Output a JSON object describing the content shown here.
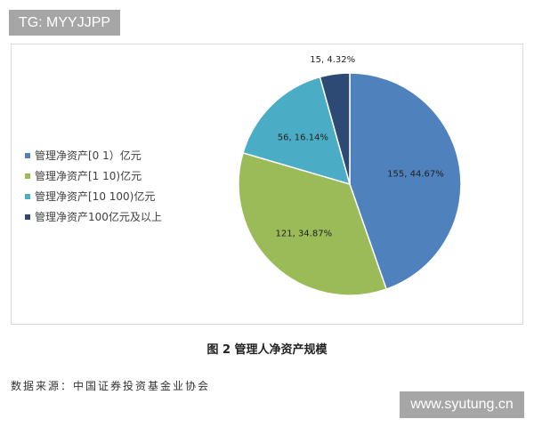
{
  "watermark_top": "TG: MYYJJPP",
  "watermark_bottom": "www.syutung.cn",
  "caption": "图 2  管理人净资产规模",
  "source": "数据来源：中国证券投资基金业协会",
  "chart_data": {
    "type": "pie",
    "categories": [
      "管理净资产[0 1）亿元",
      "管理净资产[1 10)亿元",
      "管理净资产[10 100)亿元",
      "管理净资产100亿元及以上"
    ],
    "values": [
      155,
      121,
      56,
      15
    ],
    "percents": [
      44.67,
      34.87,
      16.14,
      4.32
    ],
    "data_labels": [
      "155, 44.67%",
      "121, 34.87%",
      "56, 16.14%",
      "15, 4.32%"
    ],
    "colors": [
      "#4f81bd",
      "#9bbb59",
      "#4bacc6",
      "#2c4a74"
    ],
    "legend": "left",
    "start": "12 o'clock, clockwise"
  }
}
